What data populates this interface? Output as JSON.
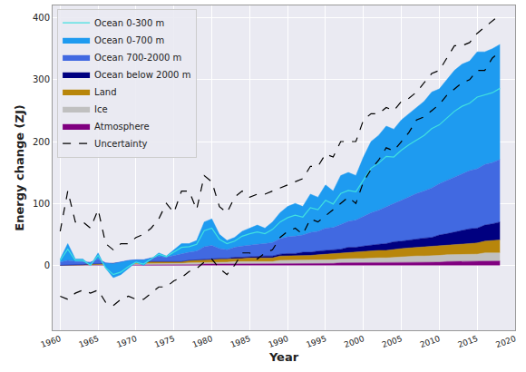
{
  "chart_data": {
    "type": "area",
    "stacked": true,
    "grid": true,
    "legend": "top-left",
    "x_label": "Year",
    "y_label": "Energy change (ZJ)",
    "xlim": [
      1959,
      2020
    ],
    "xticks": [
      1960,
      1965,
      1970,
      1975,
      1980,
      1985,
      1990,
      1995,
      2000,
      2005,
      2010,
      2015,
      2020
    ],
    "ylim": [
      -105,
      420
    ],
    "yticks": [
      0,
      100,
      200,
      300,
      400
    ],
    "x": [
      1960,
      1961,
      1962,
      1963,
      1964,
      1965,
      1966,
      1967,
      1968,
      1969,
      1970,
      1971,
      1972,
      1973,
      1974,
      1975,
      1976,
      1977,
      1978,
      1979,
      1980,
      1981,
      1982,
      1983,
      1984,
      1985,
      1986,
      1987,
      1988,
      1989,
      1990,
      1991,
      1992,
      1993,
      1994,
      1995,
      1996,
      1997,
      1998,
      1999,
      2000,
      2001,
      2002,
      2003,
      2004,
      2005,
      2006,
      2007,
      2008,
      2009,
      2010,
      2011,
      2012,
      2013,
      2014,
      2015,
      2016,
      2017,
      2018
    ],
    "series": [
      {
        "name": "Ocean 0-300 m",
        "type": "line",
        "line_style": "solid",
        "color": "#40e0e0",
        "values": [
          3,
          18,
          2,
          2,
          -5,
          6,
          -8,
          -18,
          -17,
          -10,
          -4,
          -7,
          -2,
          4,
          1,
          6,
          11,
          9,
          11,
          26,
          28,
          15,
          10,
          10,
          16,
          18,
          20,
          16,
          21,
          27,
          31,
          34,
          29,
          40,
          35,
          45,
          38,
          50,
          50,
          46,
          60,
          72,
          76,
          81,
          75,
          81,
          84,
          87,
          90,
          96,
          95,
          101,
          106,
          109,
          109,
          116,
          112,
          113,
          115
        ]
      },
      {
        "name": "Ocean 0-700 m",
        "type": "area",
        "color": "#1e9bf0",
        "values": [
          5,
          27,
          4,
          4,
          -5,
          10,
          -9,
          -23,
          -21,
          -13,
          -4,
          -9,
          -2,
          6,
          2,
          9,
          17,
          14,
          17,
          40,
          43,
          23,
          15,
          16,
          24,
          27,
          31,
          25,
          33,
          42,
          49,
          53,
          46,
          62,
          55,
          70,
          59,
          79,
          79,
          72,
          96,
          115,
          121,
          130,
          120,
          130,
          134,
          139,
          145,
          155,
          153,
          163,
          172,
          177,
          177,
          189,
          182,
          184,
          186
        ]
      },
      {
        "name": "Ocean 700-2000 m",
        "type": "area",
        "color": "#4169e1",
        "values": [
          5,
          8,
          5,
          5,
          3,
          8,
          2,
          0,
          2,
          4,
          5,
          4,
          6,
          8,
          7,
          10,
          12,
          13,
          14,
          20,
          22,
          16,
          14,
          16,
          18,
          19,
          20,
          20,
          22,
          25,
          27,
          28,
          28,
          32,
          32,
          36,
          36,
          40,
          42,
          44,
          48,
          52,
          55,
          60,
          62,
          66,
          70,
          73,
          76,
          80,
          83,
          86,
          89,
          92,
          94,
          96,
          98,
          99,
          101
        ]
      },
      {
        "name": "Ocean below 2000 m",
        "type": "area",
        "color": "#000080",
        "values": [
          0,
          0,
          0,
          0,
          0,
          0,
          0,
          0,
          0,
          0,
          0,
          0,
          0,
          0,
          0,
          0,
          0,
          0,
          1,
          1,
          1,
          1,
          1,
          2,
          2,
          2,
          2,
          3,
          3,
          3,
          4,
          4,
          5,
          5,
          6,
          6,
          7,
          7,
          8,
          8,
          9,
          10,
          10,
          11,
          12,
          12,
          13,
          14,
          14,
          15,
          17,
          18,
          20,
          21,
          23,
          24,
          26,
          27,
          29
        ]
      },
      {
        "name": "Land",
        "type": "area",
        "color": "#b8860b",
        "values": [
          0,
          0,
          1,
          1,
          1,
          1,
          1,
          2,
          2,
          2,
          2,
          2,
          3,
          3,
          3,
          3,
          3,
          4,
          4,
          4,
          4,
          5,
          5,
          5,
          5,
          6,
          6,
          6,
          6,
          7,
          7,
          7,
          8,
          8,
          8,
          9,
          9,
          9,
          10,
          10,
          11,
          11,
          12,
          12,
          13,
          13,
          14,
          14,
          15,
          15,
          16,
          16,
          17,
          17,
          18,
          18,
          19,
          20,
          21
        ]
      },
      {
        "name": "Ice",
        "type": "area",
        "color": "#c0c0c0",
        "values": [
          0,
          0,
          0,
          0,
          1,
          1,
          1,
          1,
          1,
          1,
          1,
          2,
          2,
          2,
          2,
          2,
          2,
          3,
          3,
          3,
          3,
          3,
          3,
          4,
          4,
          4,
          4,
          4,
          4,
          5,
          5,
          5,
          5,
          5,
          6,
          6,
          6,
          6,
          7,
          7,
          7,
          8,
          8,
          8,
          9,
          9,
          9,
          10,
          10,
          10,
          11,
          11,
          11,
          12,
          12,
          12,
          13,
          13,
          13
        ]
      },
      {
        "name": "Atmosphere",
        "type": "area",
        "color": "#800080",
        "values": [
          0,
          0,
          0,
          0,
          0,
          0,
          0,
          0,
          1,
          1,
          1,
          1,
          1,
          1,
          1,
          1,
          1,
          1,
          1,
          2,
          2,
          2,
          2,
          2,
          2,
          2,
          2,
          2,
          2,
          3,
          3,
          3,
          3,
          3,
          3,
          3,
          3,
          4,
          4,
          4,
          4,
          4,
          4,
          4,
          4,
          5,
          5,
          5,
          5,
          5,
          5,
          6,
          6,
          6,
          6,
          6,
          7,
          7,
          7
        ]
      },
      {
        "name": "Uncertainty",
        "type": "line",
        "line_style": "dash",
        "color": "#000000",
        "lower": [
          -50,
          -55,
          -45,
          -40,
          -45,
          -40,
          -60,
          -65,
          -55,
          -50,
          -55,
          -55,
          -45,
          -35,
          -35,
          -25,
          -20,
          -10,
          -5,
          5,
          10,
          -5,
          -15,
          0,
          20,
          20,
          10,
          20,
          25,
          45,
          55,
          60,
          50,
          75,
          70,
          80,
          90,
          100,
          110,
          100,
          135,
          155,
          170,
          190,
          185,
          200,
          215,
          235,
          240,
          250,
          260,
          275,
          285,
          295,
          300,
          315,
          315,
          335,
          345
        ],
        "upper": [
          55,
          120,
          70,
          70,
          60,
          90,
          35,
          25,
          35,
          35,
          45,
          50,
          60,
          75,
          100,
          85,
          120,
          120,
          90,
          145,
          135,
          95,
          85,
          110,
          120,
          110,
          115,
          115,
          120,
          125,
          130,
          135,
          140,
          160,
          160,
          180,
          175,
          200,
          200,
          200,
          235,
          245,
          245,
          255,
          250,
          265,
          270,
          280,
          295,
          310,
          315,
          335,
          355,
          355,
          360,
          375,
          385,
          395,
          405
        ]
      }
    ]
  }
}
